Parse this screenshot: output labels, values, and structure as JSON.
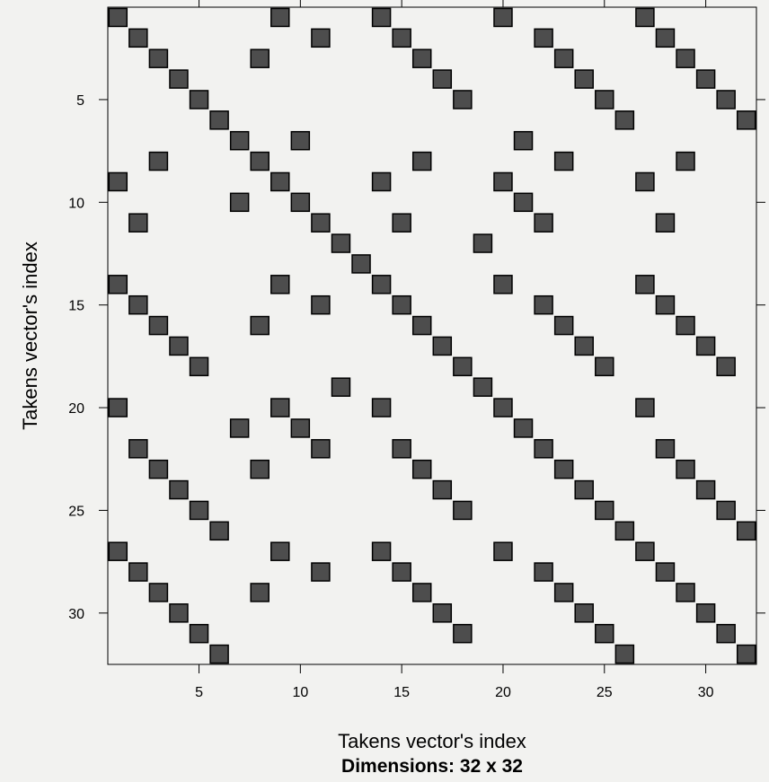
{
  "chart_data": {
    "type": "heatmap",
    "subtitle": "Dimensions: 32 x 32",
    "xlabel": "Takens vector's index",
    "ylabel": "Takens vector's index",
    "xlim": [
      0.5,
      32.5
    ],
    "ylim": [
      32.5,
      0.5
    ],
    "y_axis_reversed": true,
    "xticks": [
      5,
      10,
      15,
      20,
      25,
      30
    ],
    "yticks": [
      5,
      10,
      15,
      20,
      25,
      30
    ],
    "cell_color": "#4d4d4d",
    "border_color": "#000000",
    "background": "#f2f2f0",
    "recurrent_points_by_row": {
      "1": [
        1,
        9,
        14,
        20,
        27
      ],
      "2": [
        2,
        11,
        15,
        22,
        28
      ],
      "3": [
        3,
        8,
        16,
        23,
        29
      ],
      "4": [
        4,
        17,
        24,
        30
      ],
      "5": [
        5,
        18,
        25,
        31
      ],
      "6": [
        6,
        26,
        32
      ],
      "7": [
        7,
        10,
        21
      ],
      "8": [
        3,
        8,
        16,
        23,
        29
      ],
      "9": [
        1,
        9,
        14,
        20,
        27
      ],
      "10": [
        7,
        10,
        21
      ],
      "11": [
        2,
        11,
        15,
        22,
        28
      ],
      "12": [
        12,
        19
      ],
      "13": [
        13
      ],
      "14": [
        1,
        9,
        14,
        20,
        27
      ],
      "15": [
        2,
        11,
        15,
        22,
        28
      ],
      "16": [
        3,
        8,
        16,
        23,
        29
      ],
      "17": [
        4,
        17,
        24,
        30
      ],
      "18": [
        5,
        18,
        25,
        31
      ],
      "19": [
        12,
        19
      ],
      "20": [
        1,
        9,
        14,
        20,
        27
      ],
      "21": [
        7,
        10,
        21
      ],
      "22": [
        2,
        11,
        15,
        22,
        28
      ],
      "23": [
        3,
        8,
        16,
        23,
        29
      ],
      "24": [
        4,
        17,
        24,
        30
      ],
      "25": [
        5,
        18,
        25,
        31
      ],
      "26": [
        6,
        26,
        32
      ],
      "27": [
        1,
        9,
        14,
        20,
        27
      ],
      "28": [
        2,
        11,
        15,
        22,
        28
      ],
      "29": [
        3,
        8,
        16,
        23,
        29
      ],
      "30": [
        4,
        17,
        24,
        30
      ],
      "31": [
        5,
        18,
        25,
        31
      ],
      "32": [
        6,
        26,
        32
      ]
    }
  }
}
